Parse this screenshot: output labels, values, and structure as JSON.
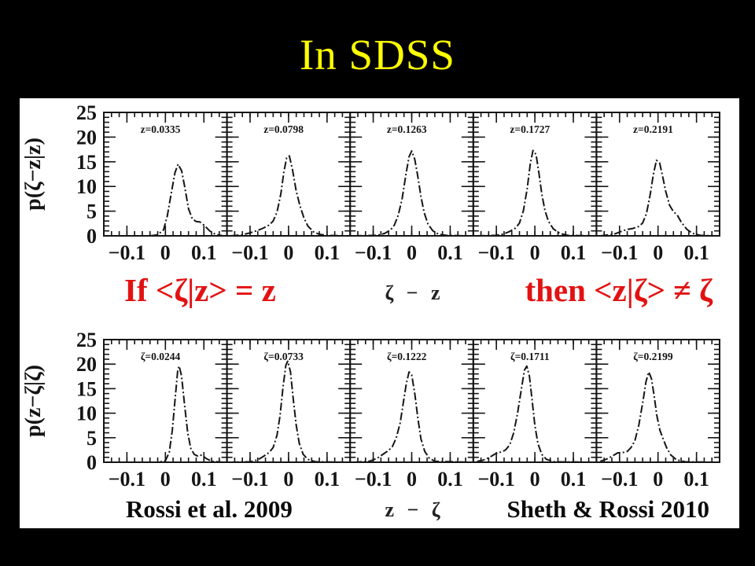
{
  "title": "In SDSS",
  "colors": {
    "background": "#000000",
    "title": "#ffff00",
    "emphasis_red": "#e31212",
    "figure_background": "#ffffff",
    "curve": "#151515"
  },
  "annotations": {
    "left_statement": "If <ζ|z> = z",
    "right_statement": "then <z|ζ> ≠ ζ",
    "credit_left": "Rossi et al. 2009",
    "credit_right": "Sheth & Rossi 2010"
  },
  "chart_data": [
    {
      "type": "line",
      "row": "top",
      "ylabel": "p(ζ−z|z)",
      "xlabel": "ζ − z",
      "ylim": [
        0,
        25
      ],
      "xlim": [
        -0.16,
        0.16
      ],
      "yticks": [
        0,
        5,
        10,
        15,
        20,
        25
      ],
      "ytick_labels": [
        "0",
        "5",
        "10",
        "15",
        "20",
        "25"
      ],
      "xticks": [
        -0.1,
        0,
        0.1
      ],
      "xtick_labels": [
        "−0.1",
        "0",
        "0.1"
      ],
      "x_minor_step": 0.02,
      "y_minor_step": 1,
      "grid": false,
      "line_style": "dash-dot",
      "panels": [
        {
          "label": "z=0.0335",
          "points": [
            [
              -0.15,
              0
            ],
            [
              -0.04,
              0
            ],
            [
              -0.02,
              0.2
            ],
            [
              -0.005,
              1.2
            ],
            [
              0.005,
              4
            ],
            [
              0.015,
              8.5
            ],
            [
              0.025,
              12.8
            ],
            [
              0.033,
              14.5
            ],
            [
              0.042,
              13.2
            ],
            [
              0.05,
              10
            ],
            [
              0.06,
              5.5
            ],
            [
              0.07,
              3.4
            ],
            [
              0.08,
              2.9
            ],
            [
              0.09,
              2.8
            ],
            [
              0.1,
              2.2
            ],
            [
              0.115,
              1
            ],
            [
              0.13,
              0.3
            ],
            [
              0.15,
              0
            ]
          ]
        },
        {
          "label": "z=0.0798",
          "points": [
            [
              -0.15,
              0
            ],
            [
              -0.12,
              0.2
            ],
            [
              -0.1,
              0.6
            ],
            [
              -0.08,
              1.1
            ],
            [
              -0.065,
              1.6
            ],
            [
              -0.05,
              2.2
            ],
            [
              -0.04,
              3
            ],
            [
              -0.03,
              4.8
            ],
            [
              -0.02,
              8.5
            ],
            [
              -0.012,
              13
            ],
            [
              -0.005,
              15.8
            ],
            [
              0.002,
              16.2
            ],
            [
              0.01,
              13.5
            ],
            [
              0.02,
              9
            ],
            [
              0.03,
              6
            ],
            [
              0.04,
              3.6
            ],
            [
              0.05,
              2
            ],
            [
              0.065,
              0.8
            ],
            [
              0.08,
              0.3
            ],
            [
              0.1,
              0.1
            ],
            [
              0.15,
              0
            ]
          ]
        },
        {
          "label": "z=0.1263",
          "points": [
            [
              -0.15,
              0
            ],
            [
              -0.09,
              0.1
            ],
            [
              -0.07,
              0.5
            ],
            [
              -0.055,
              1.2
            ],
            [
              -0.045,
              2.2
            ],
            [
              -0.035,
              4.2
            ],
            [
              -0.025,
              7.5
            ],
            [
              -0.015,
              12.5
            ],
            [
              -0.007,
              16
            ],
            [
              0,
              17.2
            ],
            [
              0.008,
              15.5
            ],
            [
              0.016,
              12
            ],
            [
              0.024,
              8
            ],
            [
              0.032,
              4.8
            ],
            [
              0.042,
              2.4
            ],
            [
              0.055,
              1
            ],
            [
              0.07,
              0.3
            ],
            [
              0.09,
              0.1
            ],
            [
              0.15,
              0
            ]
          ]
        },
        {
          "label": "z=0.1727",
          "points": [
            [
              -0.15,
              0
            ],
            [
              -0.1,
              0.1
            ],
            [
              -0.08,
              0.4
            ],
            [
              -0.065,
              0.9
            ],
            [
              -0.05,
              1.6
            ],
            [
              -0.04,
              2.6
            ],
            [
              -0.03,
              5
            ],
            [
              -0.02,
              9.5
            ],
            [
              -0.012,
              14.5
            ],
            [
              -0.005,
              17.3
            ],
            [
              0.003,
              16.5
            ],
            [
              0.01,
              13
            ],
            [
              0.018,
              8.5
            ],
            [
              0.026,
              5.2
            ],
            [
              0.035,
              3
            ],
            [
              0.048,
              1.4
            ],
            [
              0.065,
              0.5
            ],
            [
              0.085,
              0.1
            ],
            [
              0.15,
              0
            ]
          ]
        },
        {
          "label": "z=0.2191",
          "points": [
            [
              -0.15,
              0
            ],
            [
              -0.115,
              0.3
            ],
            [
              -0.095,
              0.9
            ],
            [
              -0.08,
              1.3
            ],
            [
              -0.065,
              1.5
            ],
            [
              -0.05,
              1.9
            ],
            [
              -0.04,
              2.6
            ],
            [
              -0.03,
              4.5
            ],
            [
              -0.02,
              8.5
            ],
            [
              -0.012,
              12.5
            ],
            [
              -0.004,
              15.3
            ],
            [
              0.004,
              14.8
            ],
            [
              0.012,
              12
            ],
            [
              0.02,
              9
            ],
            [
              0.03,
              6.2
            ],
            [
              0.04,
              4.9
            ],
            [
              0.05,
              4.2
            ],
            [
              0.06,
              2.8
            ],
            [
              0.075,
              1.3
            ],
            [
              0.09,
              0.5
            ],
            [
              0.11,
              0.1
            ],
            [
              0.15,
              0
            ]
          ]
        }
      ]
    },
    {
      "type": "line",
      "row": "bottom",
      "ylabel": "p(z−ζ|ζ)",
      "xlabel": "z − ζ",
      "ylim": [
        0,
        25
      ],
      "xlim": [
        -0.16,
        0.16
      ],
      "yticks": [
        0,
        5,
        10,
        15,
        20,
        25
      ],
      "ytick_labels": [
        "0",
        "5",
        "10",
        "15",
        "20",
        "25"
      ],
      "xticks": [
        -0.1,
        0,
        0.1
      ],
      "xtick_labels": [
        "−0.1",
        "0",
        "0.1"
      ],
      "x_minor_step": 0.02,
      "y_minor_step": 1,
      "grid": false,
      "line_style": "dash-dot",
      "panels": [
        {
          "label": "ζ=0.0244",
          "points": [
            [
              -0.15,
              0
            ],
            [
              -0.02,
              0
            ],
            [
              0,
              0.3
            ],
            [
              0.01,
              2
            ],
            [
              0.018,
              6.5
            ],
            [
              0.026,
              13.5
            ],
            [
              0.032,
              18.8
            ],
            [
              0.036,
              19.6
            ],
            [
              0.042,
              17.5
            ],
            [
              0.05,
              11.5
            ],
            [
              0.058,
              6
            ],
            [
              0.066,
              2.8
            ],
            [
              0.075,
              1.6
            ],
            [
              0.085,
              1.2
            ],
            [
              0.095,
              1.5
            ],
            [
              0.105,
              0.8
            ],
            [
              0.12,
              0.2
            ],
            [
              0.15,
              0
            ]
          ]
        },
        {
          "label": "ζ=0.0733",
          "points": [
            [
              -0.15,
              0
            ],
            [
              -0.1,
              0.1
            ],
            [
              -0.08,
              0.5
            ],
            [
              -0.065,
              1.2
            ],
            [
              -0.05,
              2
            ],
            [
              -0.04,
              3
            ],
            [
              -0.03,
              5.5
            ],
            [
              -0.022,
              9.5
            ],
            [
              -0.014,
              15.5
            ],
            [
              -0.007,
              19.8
            ],
            [
              -0.002,
              20.6
            ],
            [
              0.005,
              18.5
            ],
            [
              0.012,
              13
            ],
            [
              0.02,
              7.5
            ],
            [
              0.028,
              3.8
            ],
            [
              0.038,
              1.6
            ],
            [
              0.05,
              0.6
            ],
            [
              0.07,
              0.1
            ],
            [
              0.15,
              0
            ]
          ]
        },
        {
          "label": "ζ=0.1222",
          "points": [
            [
              -0.15,
              0
            ],
            [
              -0.11,
              0.2
            ],
            [
              -0.09,
              0.8
            ],
            [
              -0.075,
              1.6
            ],
            [
              -0.06,
              2.4
            ],
            [
              -0.05,
              3.2
            ],
            [
              -0.04,
              5
            ],
            [
              -0.03,
              8
            ],
            [
              -0.022,
              12
            ],
            [
              -0.014,
              16
            ],
            [
              -0.007,
              18.4
            ],
            [
              0,
              17.8
            ],
            [
              0.008,
              14
            ],
            [
              0.016,
              9
            ],
            [
              0.024,
              4.8
            ],
            [
              0.034,
              2.2
            ],
            [
              0.046,
              0.8
            ],
            [
              0.06,
              0.2
            ],
            [
              0.15,
              0
            ]
          ]
        },
        {
          "label": "ζ=0.1711",
          "points": [
            [
              -0.15,
              0.2
            ],
            [
              -0.135,
              0.4
            ],
            [
              -0.12,
              0.9
            ],
            [
              -0.105,
              1.6
            ],
            [
              -0.095,
              2
            ],
            [
              -0.085,
              2.1
            ],
            [
              -0.075,
              2.6
            ],
            [
              -0.065,
              3.6
            ],
            [
              -0.055,
              6
            ],
            [
              -0.045,
              10
            ],
            [
              -0.035,
              15
            ],
            [
              -0.027,
              18.8
            ],
            [
              -0.021,
              19.6
            ],
            [
              -0.014,
              17.5
            ],
            [
              -0.007,
              12.5
            ],
            [
              0,
              7.5
            ],
            [
              0.008,
              3.8
            ],
            [
              0.018,
              1.6
            ],
            [
              0.03,
              0.6
            ],
            [
              0.05,
              0.1
            ],
            [
              0.15,
              0
            ]
          ]
        },
        {
          "label": "ζ=0.2199",
          "points": [
            [
              -0.15,
              0.2
            ],
            [
              -0.135,
              0.6
            ],
            [
              -0.12,
              1.2
            ],
            [
              -0.105,
              1.9
            ],
            [
              -0.09,
              2
            ],
            [
              -0.08,
              2.2
            ],
            [
              -0.07,
              3
            ],
            [
              -0.06,
              4.4
            ],
            [
              -0.05,
              7.5
            ],
            [
              -0.04,
              12
            ],
            [
              -0.031,
              16.5
            ],
            [
              -0.024,
              18.4
            ],
            [
              -0.017,
              17
            ],
            [
              -0.01,
              13.5
            ],
            [
              -0.003,
              9.5
            ],
            [
              0.005,
              6.5
            ],
            [
              0.013,
              4.8
            ],
            [
              0.022,
              3
            ],
            [
              0.033,
              1.5
            ],
            [
              0.048,
              0.5
            ],
            [
              0.07,
              0.1
            ],
            [
              0.15,
              0
            ]
          ]
        }
      ]
    }
  ]
}
